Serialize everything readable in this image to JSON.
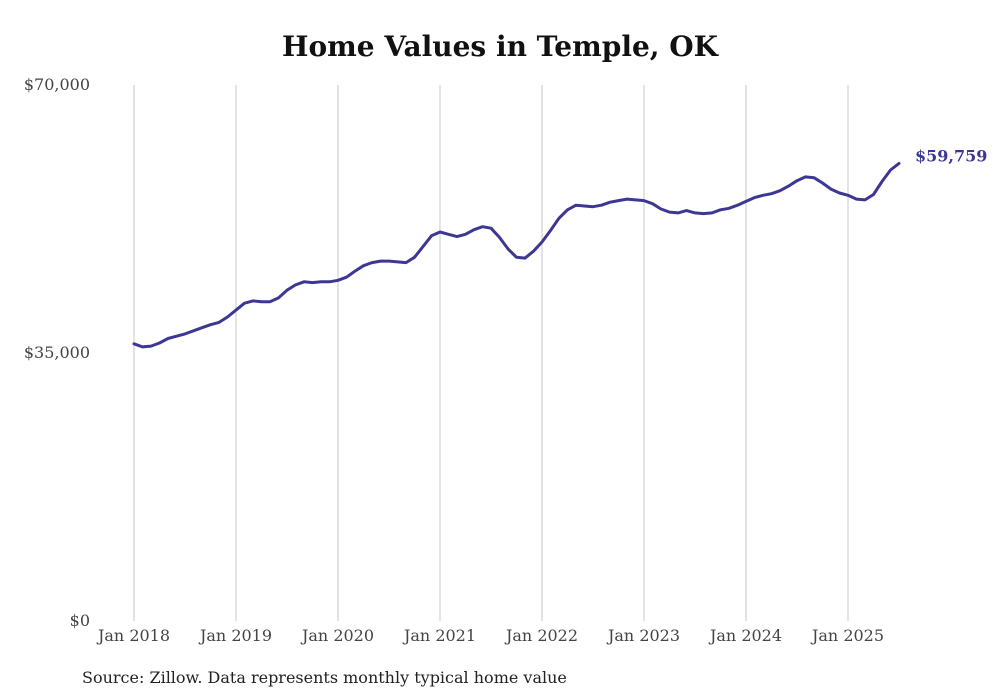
{
  "chart_data": {
    "type": "line",
    "title": "Home Values in Temple, OK",
    "xlabel": "",
    "ylabel": "",
    "ylim": [
      0,
      70000
    ],
    "y_ticks": [
      {
        "value": 0,
        "label": "$0"
      },
      {
        "value": 35000,
        "label": "$35,000"
      },
      {
        "value": 70000,
        "label": "$70,000"
      }
    ],
    "x_ticks": [
      "Jan 2018",
      "Jan 2019",
      "Jan 2020",
      "Jan 2021",
      "Jan 2022",
      "Jan 2023",
      "Jan 2024",
      "Jan 2025"
    ],
    "x_start": "2018-01",
    "grid": "vertical",
    "line_color": "#3d3794",
    "grid_color": "#c8c8c8",
    "series": [
      {
        "values": [
          36200,
          35800,
          35900,
          36300,
          36900,
          37200,
          37500,
          37900,
          38300,
          38700,
          39000,
          39700,
          40600,
          41500,
          41800,
          41700,
          41700,
          42200,
          43200,
          43900,
          44300,
          44200,
          44300,
          44300,
          44500,
          44900,
          45700,
          46400,
          46800,
          47000,
          47000,
          46900,
          46800,
          47500,
          48900,
          50300,
          50800,
          50500,
          50200,
          50500,
          51100,
          51500,
          51300,
          50100,
          48600,
          47500,
          47400,
          48300,
          49500,
          51000,
          52600,
          53700,
          54300,
          54200,
          54100,
          54300,
          54700,
          54900,
          55100,
          55000,
          54900,
          54500,
          53800,
          53400,
          53300,
          53600,
          53300,
          53200,
          53300,
          53700,
          53900,
          54300,
          54800,
          55300,
          55600,
          55800,
          56200,
          56800,
          57500,
          58000,
          57900,
          57200,
          56400,
          55900,
          55600,
          55100,
          55000,
          55700,
          57400,
          58900,
          59759
        ]
      }
    ],
    "end_label": "$59,759"
  },
  "source": "Source: Zillow. Data represents monthly typical home value"
}
